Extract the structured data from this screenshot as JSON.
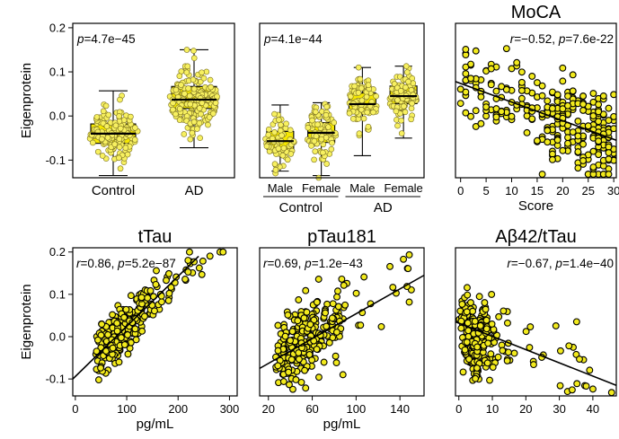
{
  "chart_data": [
    {
      "id": "p1",
      "type": "box",
      "title": "",
      "ylabel": "Eigenprotein",
      "xlabel": "",
      "annotation": "p=4.7e−45",
      "ylim": [
        -0.14,
        0.21
      ],
      "yticks": [
        0.2,
        0.1,
        0.0,
        -0.1
      ],
      "ytick_labels": [
        "0.2",
        "0.1",
        "0.0",
        "-0.1"
      ],
      "categories": [
        "Control",
        "AD"
      ],
      "groups": [
        {
          "label": "Control",
          "whisker_low": -0.135,
          "q1": -0.062,
          "median": -0.04,
          "q3": -0.018,
          "whisker_high": 0.057,
          "n": 150
        },
        {
          "label": "AD",
          "whisker_low": -0.072,
          "q1": 0.017,
          "median": 0.037,
          "q3": 0.067,
          "whisker_high": 0.15,
          "n": 175
        }
      ]
    },
    {
      "id": "p2",
      "type": "box",
      "title": "",
      "ylabel": "",
      "xlabel": "",
      "annotation": "p=4.1e−44",
      "ylim": [
        -0.14,
        0.21
      ],
      "categories": [
        "Male",
        "Female",
        "Male",
        "Female"
      ],
      "group_labels": [
        "Control",
        "AD"
      ],
      "groups": [
        {
          "label": "Male",
          "sex_group": "Control",
          "whisker_low": -0.125,
          "q1": -0.075,
          "median": -0.057,
          "q3": -0.035,
          "whisker_high": 0.025,
          "n": 60
        },
        {
          "label": "Female",
          "sex_group": "Control",
          "whisker_low": -0.135,
          "q1": -0.06,
          "median": -0.038,
          "q3": -0.015,
          "whisker_high": 0.03,
          "n": 85
        },
        {
          "label": "Male",
          "sex_group": "AD",
          "whisker_low": -0.09,
          "q1": 0.005,
          "median": 0.027,
          "q3": 0.052,
          "whisker_high": 0.11,
          "n": 80
        },
        {
          "label": "Female",
          "sex_group": "AD",
          "whisker_low": -0.05,
          "q1": 0.028,
          "median": 0.045,
          "q3": 0.068,
          "whisker_high": 0.113,
          "n": 90
        }
      ]
    },
    {
      "id": "p3",
      "type": "scatter",
      "title": "MoCA",
      "ylabel": "",
      "xlabel": "Score",
      "annotation": "r=−0.52, p=7.6e-22",
      "xlim": [
        -1,
        30.5
      ],
      "ylim": [
        -0.14,
        0.21
      ],
      "xticks": [
        0,
        5,
        10,
        15,
        20,
        25,
        30
      ],
      "fit": {
        "x": [
          -1,
          30.5
        ],
        "y": [
          0.078,
          -0.055
        ]
      },
      "n": 300
    },
    {
      "id": "p4",
      "type": "scatter",
      "title": "tTau",
      "ylabel": "Eigenprotein",
      "xlabel": "pg/mL",
      "annotation": "r=0.86, p=5.2e−87",
      "xlim": [
        -5,
        315
      ],
      "ylim": [
        -0.14,
        0.21
      ],
      "xticks": [
        0,
        100,
        200,
        300
      ],
      "yticks": [
        0.2,
        0.1,
        0.0,
        -0.1
      ],
      "ytick_labels": [
        "0.2",
        "0.1",
        "0.0",
        "-0.1"
      ],
      "fit": {
        "x": [
          -5,
          240
        ],
        "y": [
          -0.1,
          0.19
        ]
      },
      "n": 280
    },
    {
      "id": "p5",
      "type": "scatter",
      "title": "pTau181",
      "ylabel": "",
      "xlabel": "pg/mL",
      "annotation": "r=0.69, p=1.2e−43",
      "xlim": [
        12,
        162
      ],
      "ylim": [
        -0.14,
        0.21
      ],
      "xticks": [
        20,
        60,
        100,
        140
      ],
      "fit": {
        "x": [
          12,
          162
        ],
        "y": [
          -0.075,
          0.145
        ]
      },
      "n": 280
    },
    {
      "id": "p6",
      "type": "scatter",
      "title": "Aβ42/tTau",
      "ylabel": "",
      "xlabel": "",
      "annotation": "r=−0.67, p=1.4e−40",
      "xlim": [
        -1,
        47
      ],
      "ylim": [
        -0.14,
        0.21
      ],
      "xticks": [
        0,
        10,
        20,
        30,
        40
      ],
      "fit": {
        "x": [
          -1,
          47
        ],
        "y": [
          0.035,
          -0.115
        ]
      },
      "n": 280
    }
  ],
  "sex_labels": {
    "male": "Male",
    "female": "Female"
  }
}
